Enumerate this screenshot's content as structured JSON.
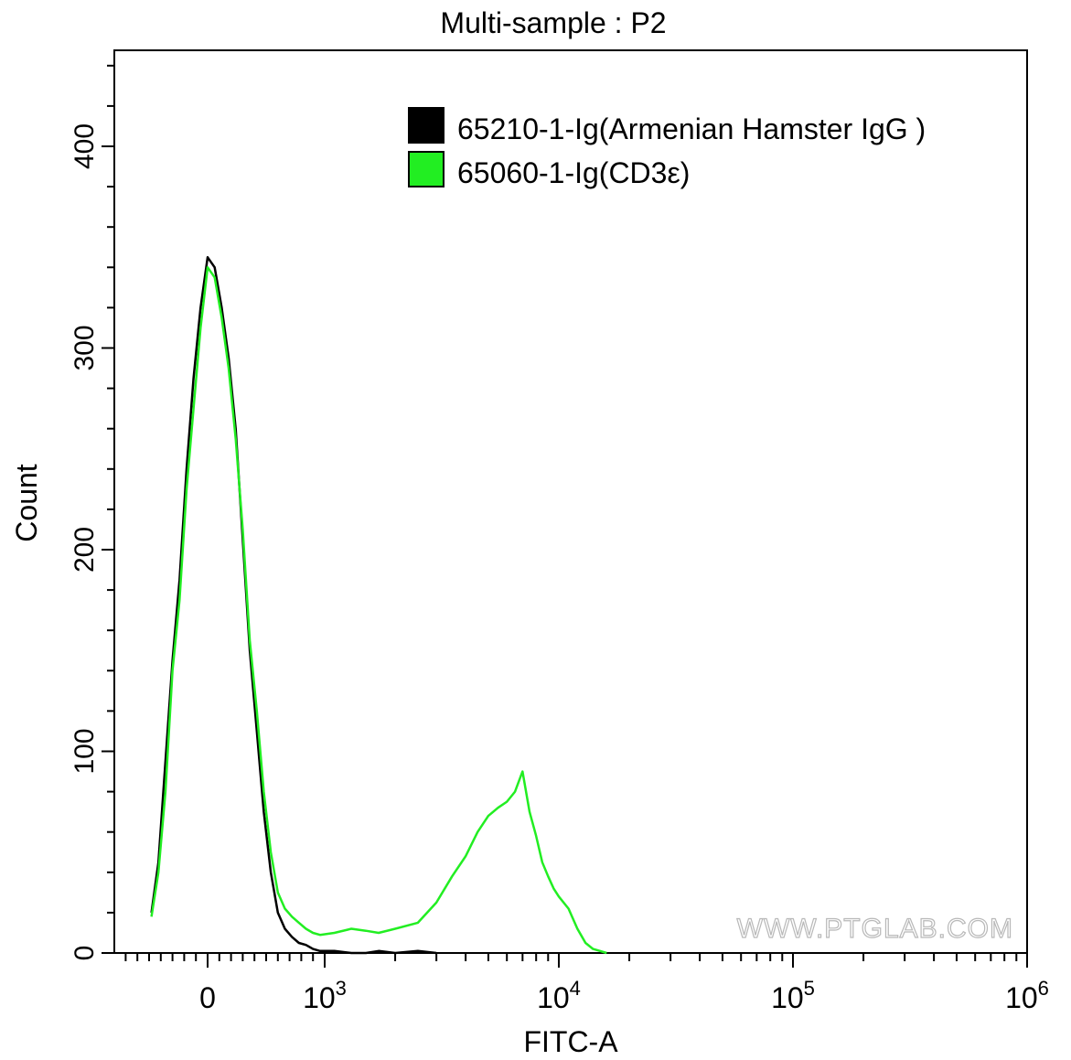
{
  "chart_data": {
    "type": "line",
    "title": "Multi-sample : P2",
    "xlabel": "FITC-A",
    "ylabel": "Count",
    "x_scale": "biexponential",
    "ylim": [
      0,
      400
    ],
    "y_ticks": [
      {
        "value": 0,
        "label": "0"
      },
      {
        "value": 100,
        "label": "100"
      },
      {
        "value": 200,
        "label": "200"
      },
      {
        "value": 300,
        "label": "300"
      },
      {
        "value": 400,
        "label": "400"
      }
    ],
    "x_ticks": [
      {
        "value": 0,
        "label": "0"
      },
      {
        "value": 1000,
        "base": "10",
        "exp": "3"
      },
      {
        "value": 10000,
        "base": "10",
        "exp": "4"
      },
      {
        "value": 100000,
        "base": "10",
        "exp": "5"
      },
      {
        "value": 1000000,
        "base": "10",
        "exp": "6"
      }
    ],
    "legend_position": "top-right",
    "watermark": "WWW.PTGLAB.COM",
    "series": [
      {
        "name": "65210-1-Ig(Armenian Hamster IgG )",
        "color": "#000000",
        "x": [
          -480,
          -420,
          -360,
          -300,
          -240,
          -180,
          -120,
          -60,
          0,
          60,
          120,
          180,
          240,
          300,
          360,
          420,
          480,
          540,
          600,
          660,
          720,
          780,
          840,
          900,
          960,
          1100,
          1300,
          1500,
          1700,
          2000,
          2500,
          3000
        ],
        "y": [
          20,
          45,
          95,
          145,
          185,
          240,
          285,
          320,
          345,
          340,
          320,
          295,
          260,
          205,
          150,
          110,
          70,
          40,
          20,
          12,
          8,
          5,
          4,
          2,
          1,
          1,
          0,
          0,
          1,
          0,
          1,
          0
        ]
      },
      {
        "name": "65060-1-Ig(CD3ε)",
        "color": "#22ee22",
        "x": [
          -480,
          -420,
          -360,
          -300,
          -240,
          -180,
          -120,
          -60,
          0,
          60,
          120,
          180,
          240,
          300,
          360,
          420,
          480,
          540,
          600,
          660,
          720,
          780,
          840,
          900,
          960,
          1100,
          1300,
          1500,
          1700,
          2000,
          2500,
          3000,
          3500,
          4000,
          4500,
          5000,
          5500,
          6000,
          6500,
          7000,
          7500,
          8000,
          8500,
          9000,
          9500,
          10000,
          11000,
          12000,
          13000,
          14000,
          15000,
          16000
        ],
        "y": [
          18,
          40,
          80,
          140,
          175,
          230,
          270,
          310,
          340,
          335,
          315,
          290,
          255,
          210,
          155,
          120,
          80,
          50,
          30,
          22,
          18,
          15,
          12,
          10,
          9,
          10,
          12,
          11,
          10,
          12,
          15,
          25,
          38,
          48,
          60,
          68,
          72,
          75,
          80,
          90,
          70,
          58,
          45,
          38,
          32,
          28,
          22,
          12,
          5,
          2,
          1,
          0
        ]
      }
    ]
  }
}
